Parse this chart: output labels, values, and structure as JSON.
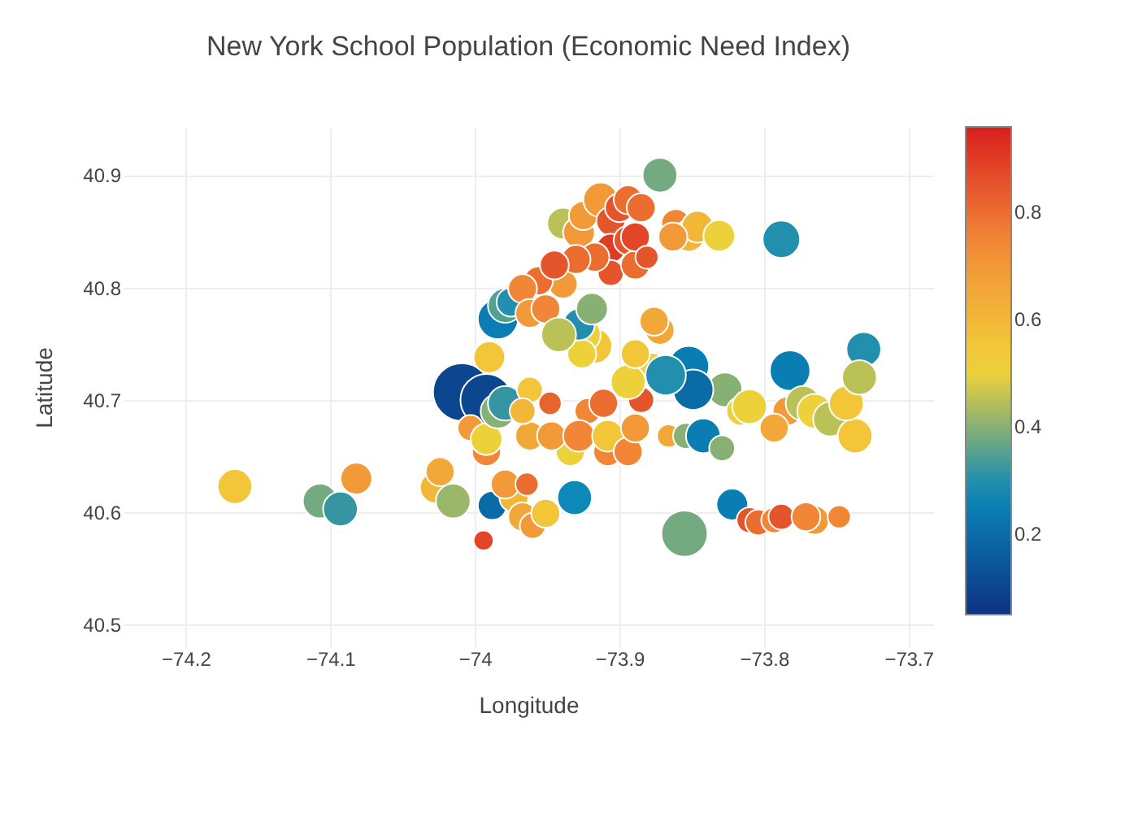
{
  "chart_data": {
    "type": "bubble",
    "title": "New York School Population (Economic Need Index)",
    "xlabel": "Longitude",
    "ylabel": "Latitude",
    "xlim": [
      -74.243,
      -73.683
    ],
    "ylim": [
      40.48,
      40.943
    ],
    "xticks": [
      {
        "value": -74.2,
        "label": "−74.2"
      },
      {
        "value": -74.1,
        "label": "−74.1"
      },
      {
        "value": -74,
        "label": "−74"
      },
      {
        "value": -73.9,
        "label": "−73.9"
      },
      {
        "value": -73.8,
        "label": "−73.8"
      },
      {
        "value": -73.7,
        "label": "−73.7"
      }
    ],
    "yticks": [
      40.5,
      40.6,
      40.7,
      40.8,
      40.9
    ],
    "grid": true,
    "marker": "circle",
    "clim": [
      0.05,
      0.96
    ],
    "cticks": [
      0.2,
      0.4,
      0.6,
      0.8
    ],
    "series": [
      {
        "x": [
          -74.166,
          -74.107,
          -74.093,
          -74.082,
          -74.027,
          -74.024,
          -74.015,
          -73.994,
          -74.009,
          -73.992,
          -74.003,
          -73.992,
          -73.992,
          -73.984,
          -73.979,
          -73.99,
          -73.984,
          -73.979,
          -73.975,
          -73.988,
          -73.973,
          -73.979,
          -73.967,
          -73.964,
          -73.96,
          -73.951,
          -73.931,
          -73.934,
          -73.962,
          -73.947,
          -73.948,
          -73.962,
          -73.967,
          -73.922,
          -73.928,
          -73.908,
          -73.911,
          -73.908,
          -73.894,
          -73.889,
          -73.885,
          -73.878,
          -73.872,
          -73.866,
          -73.854,
          -73.855,
          -73.842,
          -73.829,
          -73.822,
          -73.81,
          -73.804,
          -73.793,
          -73.788,
          -73.765,
          -73.771,
          -73.748,
          -73.827,
          -73.816,
          -73.81,
          -73.784,
          -73.793,
          -73.782,
          -73.773,
          -73.765,
          -73.754,
          -73.737,
          -73.743,
          -73.731,
          -73.734,
          -73.852,
          -73.849,
          -73.868,
          -73.894,
          -73.889,
          -73.876,
          -73.917,
          -73.925,
          -73.926,
          -73.928,
          -73.939,
          -73.956,
          -73.967,
          -73.962,
          -73.951,
          -73.942,
          -73.919,
          -73.939,
          -73.928,
          -73.925,
          -73.913,
          -73.906,
          -73.9,
          -73.894,
          -73.885,
          -73.872,
          -73.906,
          -73.894,
          -73.906,
          -73.889,
          -73.861,
          -73.852,
          -73.846,
          -73.831,
          -73.788,
          -73.917,
          -73.93,
          -73.945,
          -73.889,
          -73.881,
          -73.863
        ],
        "values": [
          40.623,
          40.61,
          40.603,
          40.63,
          40.622,
          40.636,
          40.61,
          40.575,
          40.707,
          40.7,
          40.675,
          40.654,
          40.665,
          40.69,
          40.697,
          40.738,
          40.772,
          40.784,
          40.787,
          40.606,
          40.613,
          40.625,
          40.596,
          40.625,
          40.588,
          40.599,
          40.613,
          40.654,
          40.668,
          40.668,
          40.697,
          40.709,
          40.69,
          40.69,
          40.668,
          40.654,
          40.697,
          40.668,
          40.654,
          40.675,
          40.7,
          40.729,
          40.762,
          40.668,
          40.668,
          40.581,
          40.668,
          40.657,
          40.607,
          40.593,
          40.591,
          40.593,
          40.596,
          40.593,
          40.596,
          40.596,
          40.709,
          40.69,
          40.694,
          40.69,
          40.675,
          40.726,
          40.697,
          40.69,
          40.683,
          40.668,
          40.697,
          40.745,
          40.72,
          40.73,
          40.709,
          40.722,
          40.716,
          40.741,
          40.77,
          40.748,
          40.758,
          40.741,
          40.767,
          40.803,
          40.806,
          40.799,
          40.777,
          40.781,
          40.758,
          40.781,
          40.857,
          40.849,
          40.864,
          40.878,
          40.859,
          40.871,
          40.878,
          40.871,
          40.9,
          40.835,
          40.842,
          40.813,
          40.82,
          40.857,
          40.846,
          40.854,
          40.846,
          40.843,
          40.827,
          40.825,
          40.82,
          40.845,
          40.827,
          40.845
        ],
        "sizes": [
          0.36,
          0.36,
          0.36,
          0.3,
          0.3,
          0.25,
          0.36,
          0.12,
          1,
          0.81,
          0.2,
          0.25,
          0.3,
          0.36,
          0.36,
          0.3,
          0.49,
          0.36,
          0.25,
          0.25,
          0.25,
          0.25,
          0.25,
          0.16,
          0.2,
          0.25,
          0.36,
          0.25,
          0.25,
          0.25,
          0.16,
          0.2,
          0.2,
          0.2,
          0.3,
          0.25,
          0.25,
          0.3,
          0.25,
          0.25,
          0.2,
          0.25,
          0.25,
          0.16,
          0.2,
          0.64,
          0.36,
          0.2,
          0.3,
          0.2,
          0.2,
          0.2,
          0.2,
          0.25,
          0.25,
          0.16,
          0.36,
          0.25,
          0.36,
          0.25,
          0.25,
          0.49,
          0.36,
          0.36,
          0.36,
          0.36,
          0.36,
          0.36,
          0.36,
          0.49,
          0.49,
          0.49,
          0.36,
          0.25,
          0.25,
          0.36,
          0.36,
          0.25,
          0.3,
          0.25,
          0.25,
          0.25,
          0.25,
          0.25,
          0.36,
          0.3,
          0.3,
          0.3,
          0.25,
          0.36,
          0.25,
          0.25,
          0.25,
          0.25,
          0.36,
          0.25,
          0.25,
          0.2,
          0.25,
          0.25,
          0.3,
          0.3,
          0.3,
          0.42,
          0.25,
          0.25,
          0.25,
          0.25,
          0.16,
          0.25
        ],
        "cvalues": [
          0.55,
          0.38,
          0.32,
          0.7,
          0.6,
          0.65,
          0.42,
          0.88,
          0.1,
          0.1,
          0.7,
          0.75,
          0.5,
          0.4,
          0.32,
          0.55,
          0.25,
          0.35,
          0.3,
          0.2,
          0.6,
          0.7,
          0.65,
          0.8,
          0.7,
          0.55,
          0.28,
          0.5,
          0.65,
          0.7,
          0.82,
          0.55,
          0.6,
          0.75,
          0.75,
          0.75,
          0.8,
          0.55,
          0.75,
          0.7,
          0.85,
          0.5,
          0.65,
          0.65,
          0.4,
          0.38,
          0.25,
          0.4,
          0.25,
          0.85,
          0.8,
          0.75,
          0.85,
          0.7,
          0.75,
          0.75,
          0.4,
          0.5,
          0.5,
          0.7,
          0.65,
          0.25,
          0.45,
          0.5,
          0.45,
          0.55,
          0.55,
          0.3,
          0.45,
          0.25,
          0.2,
          0.3,
          0.5,
          0.55,
          0.65,
          0.55,
          0.5,
          0.5,
          0.3,
          0.7,
          0.8,
          0.75,
          0.7,
          0.75,
          0.45,
          0.4,
          0.45,
          0.7,
          0.7,
          0.7,
          0.85,
          0.85,
          0.8,
          0.8,
          0.38,
          0.9,
          0.85,
          0.85,
          0.8,
          0.75,
          0.6,
          0.6,
          0.5,
          0.3,
          0.8,
          0.8,
          0.85,
          0.88,
          0.85,
          0.7
        ]
      }
    ]
  }
}
